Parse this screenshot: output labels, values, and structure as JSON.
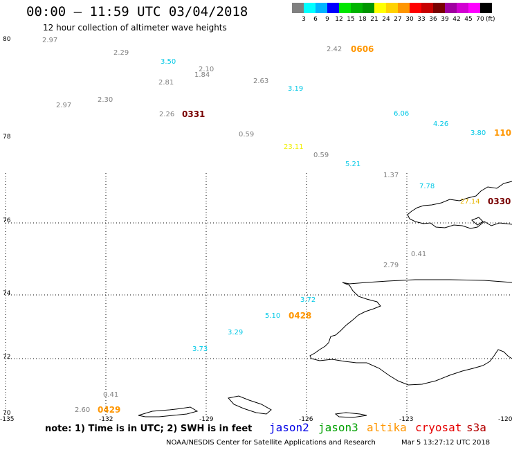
{
  "header": {
    "title": "00:00 – 11:59 UTC 03/04/2018",
    "subtitle": "12 hour collection of altimeter wave heights"
  },
  "legend": {
    "colors": [
      "#808080",
      "#00ffff",
      "#00b4ff",
      "#0000ff",
      "#00e600",
      "#00b400",
      "#009600",
      "#ffff00",
      "#ffd200",
      "#ff9600",
      "#ff0000",
      "#c80000",
      "#780000",
      "#a000a0",
      "#d200d2",
      "#ff00ff",
      "#000000"
    ],
    "labels": [
      "3",
      "6",
      "9",
      "12",
      "15",
      "18",
      "21",
      "24",
      "27",
      "30",
      "33",
      "36",
      "39",
      "42",
      "45",
      "70"
    ],
    "unit": "(ft)"
  },
  "axes": {
    "lat_labels": [
      "80",
      "78",
      "76",
      "74",
      "72",
      "70"
    ],
    "lon_labels": [
      "-135",
      "-132",
      "-129",
      "-126",
      "-123",
      "-120"
    ]
  },
  "observations": [
    {
      "value": "2.97",
      "color": "#808080"
    },
    {
      "value": "2.29",
      "color": "#808080"
    },
    {
      "value": "3.50",
      "color": "#00c8e6"
    },
    {
      "value": "2.10",
      "color": "#808080"
    },
    {
      "value": "1.84",
      "color": "#808080"
    },
    {
      "value": "2.81",
      "color": "#808080"
    },
    {
      "value": "2.63",
      "color": "#808080"
    },
    {
      "value": "2.42",
      "color": "#808080"
    },
    {
      "value": "3.19",
      "color": "#00c8e6"
    },
    {
      "value": "2.30",
      "color": "#808080"
    },
    {
      "value": "2.97",
      "color": "#808080"
    },
    {
      "value": "2.26",
      "color": "#808080"
    },
    {
      "value": "6.06",
      "color": "#00c8e6"
    },
    {
      "value": "4.26",
      "color": "#00c8e6"
    },
    {
      "value": "3.80",
      "color": "#00c8e6"
    },
    {
      "value": "0.59",
      "color": "#808080"
    },
    {
      "value": "23.11",
      "color": "#f0f000"
    },
    {
      "value": "0.59",
      "color": "#808080"
    },
    {
      "value": "5.21",
      "color": "#00c8e6"
    },
    {
      "value": "1.37",
      "color": "#808080"
    },
    {
      "value": "7.78",
      "color": "#00c8e6"
    },
    {
      "value": "27.14",
      "color": "#e6b400"
    },
    {
      "value": "0.41",
      "color": "#808080"
    },
    {
      "value": "2.79",
      "color": "#808080"
    },
    {
      "value": "3.72",
      "color": "#00c8e6"
    },
    {
      "value": "5.10",
      "color": "#00c8e6"
    },
    {
      "value": "3.29",
      "color": "#00c8e6"
    },
    {
      "value": "3.73",
      "color": "#00c8e6"
    },
    {
      "value": "0.41",
      "color": "#808080"
    },
    {
      "value": "2.60",
      "color": "#808080"
    }
  ],
  "pass_times": [
    {
      "value": "0606",
      "color": "#ff9600"
    },
    {
      "value": "0331",
      "color": "#780000"
    },
    {
      "value": "110",
      "color": "#ff9600"
    },
    {
      "value": "0330",
      "color": "#780000"
    },
    {
      "value": "0428",
      "color": "#ff9600"
    },
    {
      "value": "0429",
      "color": "#ff9600"
    }
  ],
  "footer": {
    "note": "note: 1) Time is in UTC; 2) SWH is in feet",
    "satellites": [
      {
        "name": "jason2",
        "color": "#0000e6"
      },
      {
        "name": "jason3",
        "color": "#00a000"
      },
      {
        "name": "altika",
        "color": "#ff9600"
      },
      {
        "name": "cryosat",
        "color": "#e60000"
      },
      {
        "name": "s3a",
        "color": "#b40000"
      }
    ],
    "credit": "NOAA/NESDIS Center for Satellite Applications and Research",
    "timestamp": "Mar  5 13:27:12 UTC 2018"
  }
}
